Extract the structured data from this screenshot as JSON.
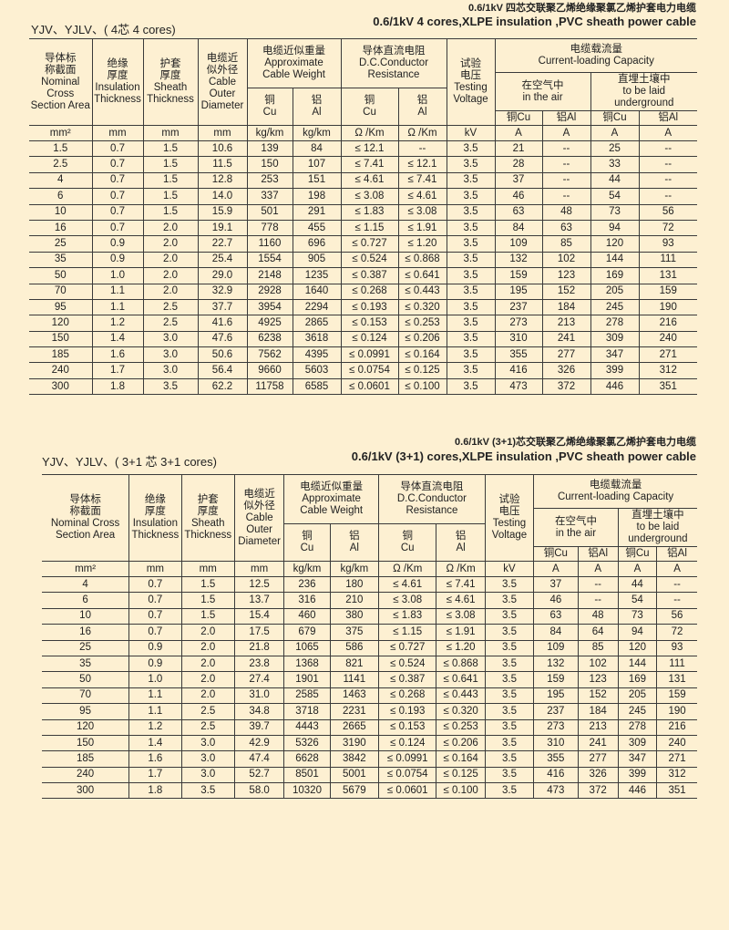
{
  "table1": {
    "title_cn": "0.6/1kV 四芯交联聚乙烯绝缘聚氯乙烯护套电力电缆",
    "title_en": "0.6/1kV 4 cores,XLPE insulation ,PVC sheath power cable",
    "code_label": "YJV、YJLV、( 4芯   4 cores)",
    "headers": {
      "area": "导体标\n称截面\nNominal\nCross\nSection Area",
      "insulation": "绝缘\n厚度\nInsulation\nThickness",
      "sheath": "护套\n厚度\nSheath\nThickness",
      "diameter": "电缆近\n似外径\nCable\nOuter\nDiameter",
      "weight": "电缆近似重量\nApproximate\nCable Weight",
      "weight_cu": "铜\nCu",
      "weight_al": "铝\nAl",
      "resistance": "导体直流电阻\nD.C.Conductor\nResistance",
      "res_cu": "铜\nCu",
      "res_al": "铝\nAl",
      "voltage": "试验\n电压\nTesting\nVoltage",
      "capacity": "电缆载流量\nCurrent-loading Capacity",
      "air": "在空气中\nin the air",
      "ground": "直埋土壤中\nto be laid\nunderground",
      "air_cu": "铜Cu",
      "air_al": "铝Al",
      "ground_cu": "铜Cu",
      "ground_al": "铝Al"
    },
    "units": [
      "mm²",
      "mm",
      "mm",
      "mm",
      "kg/km",
      "kg/km",
      "Ω /Km",
      "Ω /Km",
      "kV",
      "A",
      "A",
      "A",
      "A"
    ],
    "rows": [
      [
        "1.5",
        "0.7",
        "1.5",
        "10.6",
        "139",
        "84",
        "≤ 12.1",
        "--",
        "3.5",
        "21",
        "--",
        "25",
        "--"
      ],
      [
        "2.5",
        "0.7",
        "1.5",
        "11.5",
        "150",
        "107",
        "≤ 7.41",
        "≤ 12.1",
        "3.5",
        "28",
        "--",
        "33",
        "--"
      ],
      [
        "4",
        "0.7",
        "1.5",
        "12.8",
        "253",
        "151",
        "≤ 4.61",
        "≤ 7.41",
        "3.5",
        "37",
        "--",
        "44",
        "--"
      ],
      [
        "6",
        "0.7",
        "1.5",
        "14.0",
        "337",
        "198",
        "≤ 3.08",
        "≤ 4.61",
        "3.5",
        "46",
        "--",
        "54",
        "--"
      ],
      [
        "10",
        "0.7",
        "1.5",
        "15.9",
        "501",
        "291",
        "≤ 1.83",
        "≤ 3.08",
        "3.5",
        "63",
        "48",
        "73",
        "56"
      ],
      [
        "16",
        "0.7",
        "2.0",
        "19.1",
        "778",
        "455",
        "≤ 1.15",
        "≤ 1.91",
        "3.5",
        "84",
        "63",
        "94",
        "72"
      ],
      [
        "25",
        "0.9",
        "2.0",
        "22.7",
        "1160",
        "696",
        "≤ 0.727",
        "≤ 1.20",
        "3.5",
        "109",
        "85",
        "120",
        "93"
      ],
      [
        "35",
        "0.9",
        "2.0",
        "25.4",
        "1554",
        "905",
        "≤ 0.524",
        "≤ 0.868",
        "3.5",
        "132",
        "102",
        "144",
        "111"
      ],
      [
        "50",
        "1.0",
        "2.0",
        "29.0",
        "2148",
        "1235",
        "≤ 0.387",
        "≤ 0.641",
        "3.5",
        "159",
        "123",
        "169",
        "131"
      ],
      [
        "70",
        "1.1",
        "2.0",
        "32.9",
        "2928",
        "1640",
        "≤ 0.268",
        "≤ 0.443",
        "3.5",
        "195",
        "152",
        "205",
        "159"
      ],
      [
        "95",
        "1.1",
        "2.5",
        "37.7",
        "3954",
        "2294",
        "≤ 0.193",
        "≤ 0.320",
        "3.5",
        "237",
        "184",
        "245",
        "190"
      ],
      [
        "120",
        "1.2",
        "2.5",
        "41.6",
        "4925",
        "2865",
        "≤ 0.153",
        "≤ 0.253",
        "3.5",
        "273",
        "213",
        "278",
        "216"
      ],
      [
        "150",
        "1.4",
        "3.0",
        "47.6",
        "6238",
        "3618",
        "≤ 0.124",
        "≤ 0.206",
        "3.5",
        "310",
        "241",
        "309",
        "240"
      ],
      [
        "185",
        "1.6",
        "3.0",
        "50.6",
        "7562",
        "4395",
        "≤ 0.0991",
        "≤ 0.164",
        "3.5",
        "355",
        "277",
        "347",
        "271"
      ],
      [
        "240",
        "1.7",
        "3.0",
        "56.4",
        "9660",
        "5603",
        "≤ 0.0754",
        "≤ 0.125",
        "3.5",
        "416",
        "326",
        "399",
        "312"
      ],
      [
        "300",
        "1.8",
        "3.5",
        "62.2",
        "11758",
        "6585",
        "≤ 0.0601",
        "≤ 0.100",
        "3.5",
        "473",
        "372",
        "446",
        "351"
      ]
    ]
  },
  "table2": {
    "title_cn": "0.6/1kV (3+1)芯交联聚乙烯绝缘聚氯乙烯护套电力电缆",
    "title_en": "0.6/1kV (3+1) cores,XLPE insulation ,PVC sheath power cable",
    "code_label": "YJV、YJLV、( 3+1 芯        3+1 cores)",
    "headers": {
      "area": "导体标\n称截面\nNominal Cross\nSection Area",
      "insulation": "绝缘\n厚度\nInsulation\nThickness",
      "sheath": "护套\n厚度\nSheath\nThickness",
      "diameter": "电缆近\n似外径\nCable\nOuter\nDiameter",
      "weight": "电缆近似重量\nApproximate\nCable Weight",
      "weight_cu": "铜\nCu",
      "weight_al": "铝\nAl",
      "resistance": "导体直流电阻\nD.C.Conductor\nResistance",
      "res_cu": "铜\nCu",
      "res_al": "铝\nAl",
      "voltage": "试验\n电压\nTesting\nVoltage",
      "capacity": "电缆载流量\nCurrent-loading Capacity",
      "air": "在空气中\nin the air",
      "ground": "直埋土壤中\nto be laid\nunderground",
      "air_cu": "铜Cu",
      "air_al": "铝Al",
      "ground_cu": "铜Cu",
      "ground_al": "铝Al"
    },
    "units": [
      "mm²",
      "mm",
      "mm",
      "mm",
      "kg/km",
      "kg/km",
      "Ω /Km",
      "Ω /Km",
      "kV",
      "A",
      "A",
      "A",
      "A"
    ],
    "rows": [
      [
        "4",
        "0.7",
        "1.5",
        "12.5",
        "236",
        "180",
        "≤ 4.61",
        "≤ 7.41",
        "3.5",
        "37",
        "--",
        "44",
        "--"
      ],
      [
        "6",
        "0.7",
        "1.5",
        "13.7",
        "316",
        "210",
        "≤ 3.08",
        "≤ 4.61",
        "3.5",
        "46",
        "--",
        "54",
        "--"
      ],
      [
        "10",
        "0.7",
        "1.5",
        "15.4",
        "460",
        "380",
        "≤ 1.83",
        "≤ 3.08",
        "3.5",
        "63",
        "48",
        "73",
        "56"
      ],
      [
        "16",
        "0.7",
        "2.0",
        "17.5",
        "679",
        "375",
        "≤ 1.15",
        "≤ 1.91",
        "3.5",
        "84",
        "64",
        "94",
        "72"
      ],
      [
        "25",
        "0.9",
        "2.0",
        "21.8",
        "1065",
        "586",
        "≤ 0.727",
        "≤ 1.20",
        "3.5",
        "109",
        "85",
        "120",
        "93"
      ],
      [
        "35",
        "0.9",
        "2.0",
        "23.8",
        "1368",
        "821",
        "≤ 0.524",
        "≤ 0.868",
        "3.5",
        "132",
        "102",
        "144",
        "111"
      ],
      [
        "50",
        "1.0",
        "2.0",
        "27.4",
        "1901",
        "1141",
        "≤ 0.387",
        "≤ 0.641",
        "3.5",
        "159",
        "123",
        "169",
        "131"
      ],
      [
        "70",
        "1.1",
        "2.0",
        "31.0",
        "2585",
        "1463",
        "≤ 0.268",
        "≤ 0.443",
        "3.5",
        "195",
        "152",
        "205",
        "159"
      ],
      [
        "95",
        "1.1",
        "2.5",
        "34.8",
        "3718",
        "2231",
        "≤ 0.193",
        "≤ 0.320",
        "3.5",
        "237",
        "184",
        "245",
        "190"
      ],
      [
        "120",
        "1.2",
        "2.5",
        "39.7",
        "4443",
        "2665",
        "≤ 0.153",
        "≤ 0.253",
        "3.5",
        "273",
        "213",
        "278",
        "216"
      ],
      [
        "150",
        "1.4",
        "3.0",
        "42.9",
        "5326",
        "3190",
        "≤ 0.124",
        "≤ 0.206",
        "3.5",
        "310",
        "241",
        "309",
        "240"
      ],
      [
        "185",
        "1.6",
        "3.0",
        "47.4",
        "6628",
        "3842",
        "≤ 0.0991",
        "≤ 0.164",
        "3.5",
        "355",
        "277",
        "347",
        "271"
      ],
      [
        "240",
        "1.7",
        "3.0",
        "52.7",
        "8501",
        "5001",
        "≤ 0.0754",
        "≤ 0.125",
        "3.5",
        "416",
        "326",
        "399",
        "312"
      ],
      [
        "300",
        "1.8",
        "3.5",
        "58.0",
        "10320",
        "5679",
        "≤ 0.0601",
        "≤ 0.100",
        "3.5",
        "473",
        "372",
        "446",
        "351"
      ]
    ]
  }
}
